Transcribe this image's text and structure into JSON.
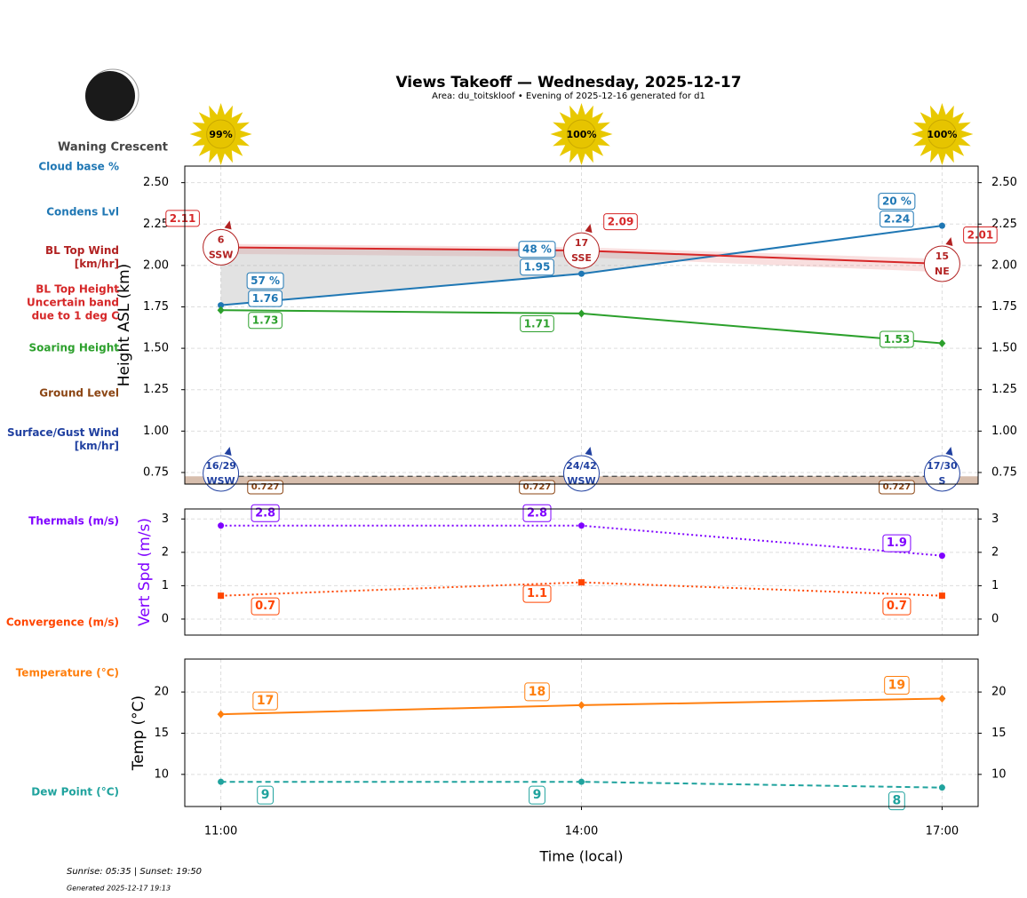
{
  "title": "Views Takeoff — Wednesday, 2025-12-17",
  "subtitle": "Area: du_toitskloof • Evening of 2025-12-16 generated for d1",
  "moon_phase": "Waning Crescent",
  "sunshine": {
    "values": [
      99,
      100,
      100
    ],
    "value_labels": [
      "99%",
      "100%",
      "100%"
    ]
  },
  "chart_data": [
    {
      "type": "line",
      "ylabel": "Height ASL (km)",
      "ylim": [
        0.68,
        2.6
      ],
      "yticks": [
        0.75,
        {
          "value": 1,
          "label": "1.00"
        },
        1.25,
        {
          "value": 1.5,
          "label": "1.50"
        },
        1.75,
        {
          "value": 2,
          "label": "2.00"
        },
        2.25,
        {
          "value": 2.5,
          "label": "2.50"
        }
      ],
      "grid": true,
      "series": [
        {
          "name": "Cloud base %",
          "color": "#1f77b4",
          "kind": "labels",
          "values": [
            57,
            48,
            20
          ],
          "value_labels": [
            "57 %",
            "48 %",
            "20 %"
          ]
        },
        {
          "name": "Condens Lvl",
          "color": "#1f77b4",
          "marker": "circle",
          "values": [
            1.76,
            1.95,
            2.24
          ]
        },
        {
          "name": "BL Top Wind [km/hr]",
          "color": "#b22222",
          "kind": "wind",
          "values": [
            6,
            17,
            15
          ],
          "directions": [
            "SSW",
            "SSE",
            "NE"
          ]
        },
        {
          "name": "BL Top Height Uncertain band due to 1 deg C",
          "color": "#d62728",
          "values": [
            2.11,
            2.09,
            2.01
          ],
          "band_low": [
            2.07,
            2.05,
            1.96
          ],
          "band_high": [
            2.13,
            2.11,
            2.04
          ]
        },
        {
          "name": "Soaring Height",
          "color": "#2ca02c",
          "marker": "diamond",
          "values": [
            1.73,
            1.71,
            1.53
          ]
        },
        {
          "name": "Ground Level",
          "color": "#8b4513",
          "kind": "ground",
          "values": [
            0.727,
            0.727,
            0.727
          ]
        },
        {
          "name": "Surface/Gust Wind [km/hr]",
          "color": "#2040a0",
          "kind": "wind",
          "values": [
            16,
            24,
            17
          ],
          "gusts": [
            29,
            42,
            30
          ],
          "value_labels": [
            "16/29",
            "24/42",
            "17/30"
          ],
          "directions": [
            "WSW",
            "WSW",
            "S"
          ]
        }
      ]
    },
    {
      "type": "line",
      "ylabel": "Vert Spd (m/s)",
      "ylabel_color": "#7f00ff",
      "ylim": [
        -0.48,
        3.3
      ],
      "yticks": [
        0,
        1,
        2,
        3
      ],
      "grid": true,
      "series": [
        {
          "name": "Thermals (m/s)",
          "color": "#7f00ff",
          "marker": "circle",
          "dash": "dotted",
          "values": [
            2.8,
            2.8,
            1.9
          ]
        },
        {
          "name": "Convergence (m/s)",
          "color": "#ff4500",
          "marker": "square",
          "dash": "dotted",
          "values": [
            0.7,
            1.1,
            0.7
          ]
        }
      ]
    },
    {
      "type": "line",
      "ylabel": "Temp (°C)",
      "ylim": [
        6.1,
        24
      ],
      "yticks": [
        10,
        15,
        20
      ],
      "grid": true,
      "categories": [
        "11:00",
        "14:00",
        "17:00"
      ],
      "xlabel": "Time (local)",
      "series": [
        {
          "name": "Temperature (°C)",
          "color": "#ff7f0e",
          "marker": "diamond",
          "values": [
            17.3,
            18.4,
            19.2
          ],
          "value_labels": [
            "17",
            "18",
            "19"
          ]
        },
        {
          "name": "Dew Point (°C)",
          "color": "#20a39e",
          "marker": "circle",
          "dash": "dashed",
          "values": [
            9.1,
            9.1,
            8.4
          ],
          "value_labels": [
            "9",
            "9",
            "8"
          ]
        }
      ]
    }
  ],
  "footer": {
    "sun_times": "Sunrise: 05:35 | Sunset: 19:50",
    "generated": "Generated 2025-12-17 19:13"
  }
}
